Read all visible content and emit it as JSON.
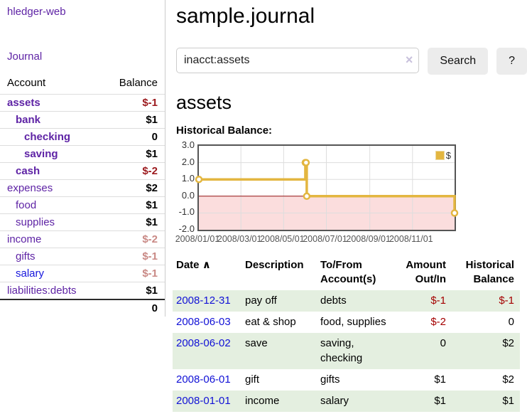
{
  "colors": {
    "link_purple": "#5e23a5",
    "link_blue": "#1616dd",
    "negative_strong": "#9c1a1e",
    "negative_muted": "#c98985",
    "row_green": "#e4efe0",
    "chart_line": "#e3b640",
    "chart_negative_fill": "#fbdddd",
    "chart_zero_line": "#991414"
  },
  "sidebar": {
    "brand": "hledger-web",
    "journal_link": "Journal",
    "account_header": "Account",
    "balance_header": "Balance",
    "accounts": [
      {
        "label": "assets",
        "indent": 1,
        "bold": true,
        "amount": "$-1",
        "amount_style": "neg-strong",
        "link_style": "visited"
      },
      {
        "label": "bank",
        "indent": 2,
        "bold": true,
        "amount": "$1",
        "amount_style": "pos",
        "link_style": "visited"
      },
      {
        "label": "checking",
        "indent": 3,
        "bold": true,
        "amount": "0",
        "amount_style": "pos",
        "link_style": "visited"
      },
      {
        "label": "saving",
        "indent": 3,
        "bold": true,
        "amount": "$1",
        "amount_style": "pos",
        "link_style": "visited"
      },
      {
        "label": "cash",
        "indent": 2,
        "bold": true,
        "amount": "$-2",
        "amount_style": "neg-strong",
        "link_style": "visited"
      },
      {
        "label": "expenses",
        "indent": 1,
        "bold": false,
        "amount": "$2",
        "amount_style": "pos",
        "link_style": "visited"
      },
      {
        "label": "food",
        "indent": 2,
        "bold": false,
        "amount": "$1",
        "amount_style": "pos",
        "link_style": "visited"
      },
      {
        "label": "supplies",
        "indent": 2,
        "bold": false,
        "amount": "$1",
        "amount_style": "pos",
        "link_style": "visited"
      },
      {
        "label": "income",
        "indent": 1,
        "bold": false,
        "amount": "$-2",
        "amount_style": "neg-muted",
        "link_style": "visited"
      },
      {
        "label": "gifts",
        "indent": 2,
        "bold": false,
        "amount": "$-1",
        "amount_style": "neg-muted",
        "link_style": "visited"
      },
      {
        "label": "salary",
        "indent": 2,
        "bold": false,
        "amount": "$-1",
        "amount_style": "neg-muted",
        "link_style": "unvisited"
      },
      {
        "label": "liabilities:debts",
        "indent": 1,
        "bold": false,
        "amount": "$1",
        "amount_style": "pos",
        "link_style": "visited"
      }
    ],
    "total": "0"
  },
  "header": {
    "title": "sample.journal"
  },
  "search": {
    "value": "inacct:assets",
    "clear_icon": "×",
    "search_label": "Search",
    "help_label": "?"
  },
  "account_page": {
    "heading": "assets",
    "chart_title": "Historical Balance:"
  },
  "chart_data": {
    "type": "line",
    "step": true,
    "title": "Historical Balance",
    "x_range": [
      "2008-01-01",
      "2008-12-31"
    ],
    "ylim": [
      -2,
      3
    ],
    "y_tick_labels": [
      "3.0",
      "2.0",
      "1.0",
      "0.0",
      "-1.0",
      "-2.0"
    ],
    "x_tick_labels": [
      "2008/01/01",
      "2008/03/01",
      "2008/05/01",
      "2008/07/01",
      "2008/09/01",
      "2008/11/01"
    ],
    "grid": true,
    "legend_position": "top-right",
    "series": [
      {
        "name": "$",
        "points": [
          [
            "2008-01-01",
            1
          ],
          [
            "2008-06-01",
            2
          ],
          [
            "2008-06-02",
            2
          ],
          [
            "2008-06-03",
            0
          ],
          [
            "2008-12-31",
            -1
          ]
        ]
      }
    ]
  },
  "register": {
    "headers": {
      "date": "Date",
      "sort_icon": "∧",
      "description": "Description",
      "accounts": "To/From Account(s)",
      "amount": "Amount Out/In",
      "balance": "Historical Balance"
    },
    "rows": [
      {
        "date": "2008-12-31",
        "description": "pay off",
        "accounts": "debts",
        "amount": "$-1",
        "amount_neg": true,
        "balance": "$-1",
        "balance_neg": true,
        "shaded": true
      },
      {
        "date": "2008-06-03",
        "description": "eat & shop",
        "accounts": "food, supplies",
        "amount": "$-2",
        "amount_neg": true,
        "balance": "0",
        "balance_neg": false,
        "shaded": false
      },
      {
        "date": "2008-06-02",
        "description": "save",
        "accounts": "saving, checking",
        "amount": "0",
        "amount_neg": false,
        "balance": "$2",
        "balance_neg": false,
        "shaded": true
      },
      {
        "date": "2008-06-01",
        "description": "gift",
        "accounts": "gifts",
        "amount": "$1",
        "amount_neg": false,
        "balance": "$2",
        "balance_neg": false,
        "shaded": false
      },
      {
        "date": "2008-01-01",
        "description": "income",
        "accounts": "salary",
        "amount": "$1",
        "amount_neg": false,
        "balance": "$1",
        "balance_neg": false,
        "shaded": true
      }
    ]
  }
}
